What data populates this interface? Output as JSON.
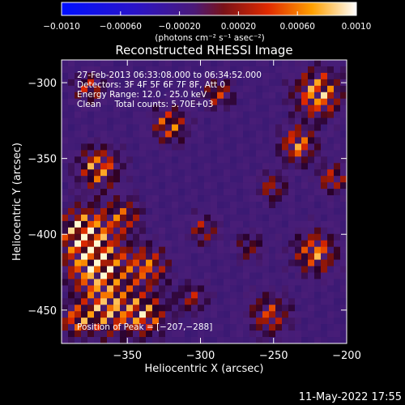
{
  "chart_data": {
    "type": "heatmap",
    "title": "Reconstructed RHESSI Image",
    "xlabel": "Heliocentric X (arcsec)",
    "ylabel": "Heliocentric Y (arcsec)",
    "xlim": [
      -395,
      -200
    ],
    "ylim": [
      -472,
      -285
    ],
    "x_ticks": [
      -350,
      -300,
      -250,
      -200
    ],
    "y_ticks": [
      -300,
      -350,
      -400,
      -450
    ],
    "x_tick_labels": [
      "−350",
      "−300",
      "−250",
      "−200"
    ],
    "y_tick_labels": [
      "−300",
      "−350",
      "−400",
      "−450"
    ],
    "colorbar": {
      "range": [
        -0.001,
        0.001
      ],
      "ticks": [
        -0.001,
        -0.0006,
        -0.0002,
        0.0002,
        0.0006,
        0.001
      ],
      "tick_labels": [
        "−0.0010",
        "−0.00060",
        "−0.00020",
        "0.00020",
        "0.00060",
        "0.0010"
      ],
      "unit_label": "(photons cm⁻² s⁻¹ asec⁻²)"
    },
    "annotations": [
      "27-Feb-2013 06:33:08.000 to 06:34:52.000",
      "Detectors: 3F 4F 5F 6F 7F 8F, Att 0",
      "Energy Range: 12.0 - 25.0 keV",
      "Clean     Total counts: 5.70E+03"
    ],
    "peak_label": "Position of Peak = [−207,−288]",
    "peak_position": [
      -207,
      -288
    ],
    "grid": false,
    "colormap": "blue-purple-red-yellow-white"
  },
  "footer": {
    "date": "11-May-2022 17:55"
  },
  "colors": {
    "background": "#000000",
    "axes": "#ffffff",
    "text": "#ffffff"
  }
}
